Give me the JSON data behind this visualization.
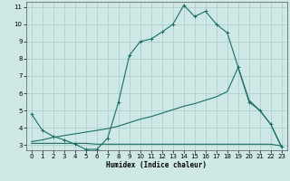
{
  "xlabel": "Humidex (Indice chaleur)",
  "xlim": [
    -0.5,
    23.5
  ],
  "ylim": [
    2.7,
    11.3
  ],
  "xticks": [
    0,
    1,
    2,
    3,
    4,
    5,
    6,
    7,
    8,
    9,
    10,
    11,
    12,
    13,
    14,
    15,
    16,
    17,
    18,
    19,
    20,
    21,
    22,
    23
  ],
  "yticks": [
    3,
    4,
    5,
    6,
    7,
    8,
    9,
    10,
    11
  ],
  "bg_color": "#cde8e5",
  "grid_color": "#b0d0cc",
  "line_color": "#1a6e64",
  "line1_x": [
    0,
    1,
    2,
    3,
    4,
    5,
    6,
    7,
    8,
    9,
    10,
    11,
    12,
    13,
    14,
    15,
    16,
    17,
    18,
    19,
    20,
    21,
    22,
    23
  ],
  "line1_y": [
    4.8,
    3.85,
    3.5,
    3.3,
    3.05,
    2.75,
    2.75,
    3.4,
    5.5,
    8.2,
    9.0,
    9.15,
    9.55,
    10.0,
    11.1,
    10.45,
    10.75,
    10.0,
    9.5,
    7.5,
    5.5,
    5.0,
    4.2,
    2.9
  ],
  "line2_x": [
    0,
    1,
    2,
    3,
    4,
    5,
    6,
    7,
    8,
    9,
    10,
    11,
    12,
    13,
    14,
    15,
    16,
    17,
    18,
    19,
    20,
    21,
    22,
    23
  ],
  "line2_y": [
    3.1,
    3.1,
    3.1,
    3.1,
    3.1,
    3.1,
    3.05,
    3.05,
    3.05,
    3.05,
    3.05,
    3.05,
    3.05,
    3.05,
    3.05,
    3.05,
    3.05,
    3.05,
    3.05,
    3.05,
    3.05,
    3.05,
    3.05,
    2.95
  ],
  "line3_x": [
    0,
    1,
    2,
    3,
    4,
    5,
    6,
    7,
    8,
    9,
    10,
    11,
    12,
    13,
    14,
    15,
    16,
    17,
    18,
    19,
    20,
    21,
    22,
    23
  ],
  "line3_y": [
    3.2,
    3.3,
    3.45,
    3.55,
    3.65,
    3.75,
    3.85,
    3.95,
    4.1,
    4.3,
    4.5,
    4.65,
    4.85,
    5.05,
    5.25,
    5.4,
    5.6,
    5.8,
    6.1,
    7.5,
    5.6,
    5.0,
    4.2,
    2.85
  ]
}
